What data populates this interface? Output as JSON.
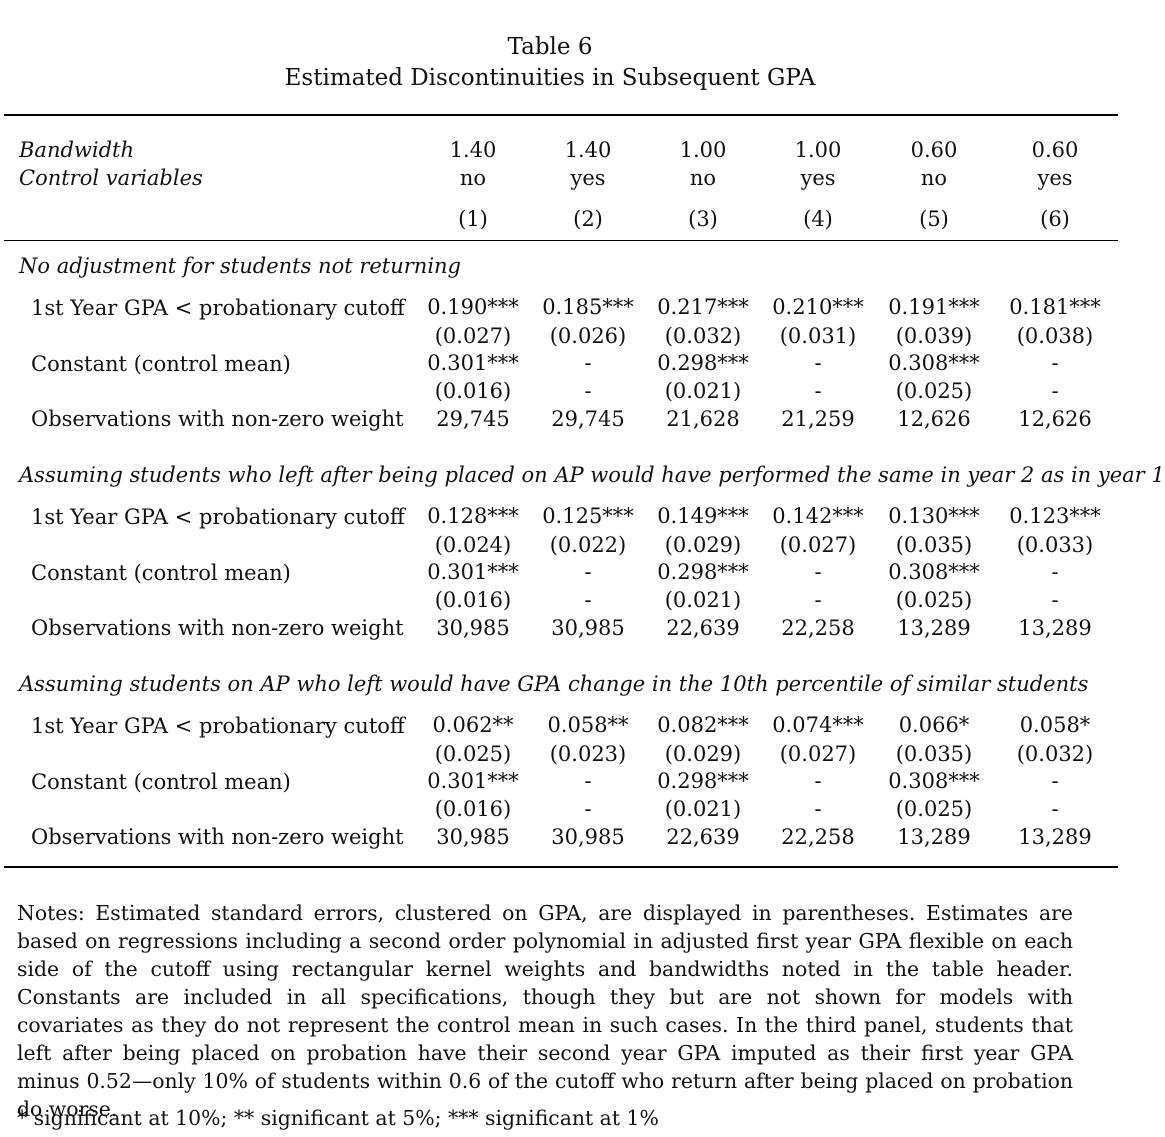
{
  "table": {
    "label": "Table 6",
    "caption": "Estimated Discontinuities in Subsequent GPA",
    "header": {
      "bandwidth_label": "Bandwidth",
      "controls_label": "Control variables",
      "bandwidth": [
        "1.40",
        "1.40",
        "1.00",
        "1.00",
        "0.60",
        "0.60"
      ],
      "controls": [
        "no",
        "yes",
        "no",
        "yes",
        "no",
        "yes"
      ],
      "colnums": [
        "(1)",
        "(2)",
        "(3)",
        "(4)",
        "(5)",
        "(6)"
      ]
    },
    "row_labels": {
      "coef": "1st Year GPA < probationary cutoff",
      "const": "Constant (control mean)",
      "obs": "Observations with non-zero weight"
    },
    "panels": [
      {
        "title": "No adjustment for students not returning",
        "coef": [
          "0.190***",
          "0.185***",
          "0.217***",
          "0.210***",
          "0.191***",
          "0.181***"
        ],
        "coef_se": [
          "(0.027)",
          "(0.026)",
          "(0.032)",
          "(0.031)",
          "(0.039)",
          "(0.038)"
        ],
        "const": [
          "0.301***",
          "-",
          "0.298***",
          "-",
          "0.308***",
          "-"
        ],
        "const_se": [
          "(0.016)",
          "-",
          "(0.021)",
          "-",
          "(0.025)",
          "-"
        ],
        "obs": [
          "29,745",
          "29,745",
          "21,628",
          "21,259",
          "12,626",
          "12,626"
        ]
      },
      {
        "title": "Assuming students who left after being placed on AP would have performed the same in year 2 as in year 1",
        "coef": [
          "0.128***",
          "0.125***",
          "0.149***",
          "0.142***",
          "0.130***",
          "0.123***"
        ],
        "coef_se": [
          "(0.024)",
          "(0.022)",
          "(0.029)",
          "(0.027)",
          "(0.035)",
          "(0.033)"
        ],
        "const": [
          "0.301***",
          "-",
          "0.298***",
          "-",
          "0.308***",
          "-"
        ],
        "const_se": [
          "(0.016)",
          "-",
          "(0.021)",
          "-",
          "(0.025)",
          "-"
        ],
        "obs": [
          "30,985",
          "30,985",
          "22,639",
          "22,258",
          "13,289",
          "13,289"
        ]
      },
      {
        "title": "Assuming students on AP who left would have GPA change in the 10th percentile of similar students",
        "coef": [
          "0.062**",
          "0.058**",
          "0.082***",
          "0.074***",
          "0.066*",
          "0.058*"
        ],
        "coef_se": [
          "(0.025)",
          "(0.023)",
          "(0.029)",
          "(0.027)",
          "(0.035)",
          "(0.032)"
        ],
        "const": [
          "0.301***",
          "-",
          "0.298***",
          "-",
          "0.308***",
          "-"
        ],
        "const_se": [
          "(0.016)",
          "-",
          "(0.021)",
          "-",
          "(0.025)",
          "-"
        ],
        "obs": [
          "30,985",
          "30,985",
          "22,639",
          "22,258",
          "13,289",
          "13,289"
        ]
      }
    ],
    "notes": "Notes: Estimated standard errors, clustered on GPA, are displayed in parentheses. Estimates are based on regressions including a second order polynomial in adjusted first year GPA flexible on each side of the cutoff using rectangular kernel weights and bandwidths noted in the table header. Constants are included in all specifications, though they but are not shown for models with covariates as they do not represent the control mean in such cases. In the third panel, students that left after being placed on probation have their second year GPA imputed as their first year GPA minus 0.52—only 10% of students within 0.6 of the cutoff who return after being placed on probation do worse.",
    "significance": "* significant at 10%; ** significant at 5%; *** significant at 1%"
  }
}
